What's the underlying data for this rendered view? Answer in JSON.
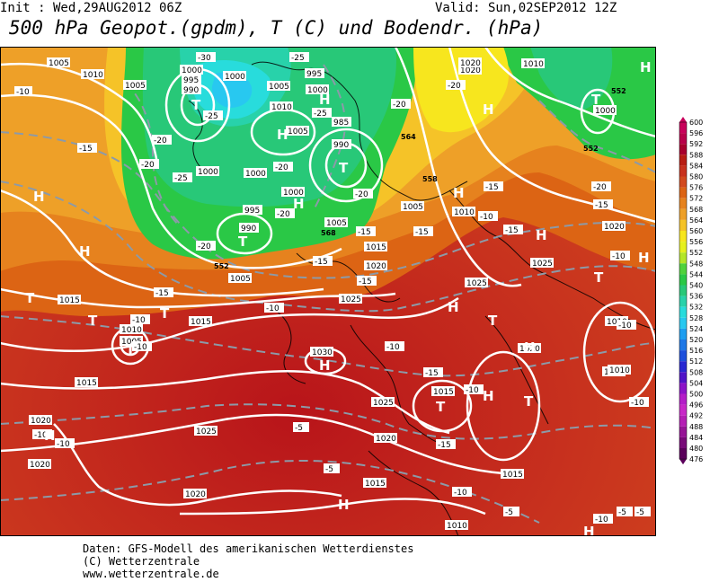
{
  "header": {
    "init_label": "Init : Wed,29AUG2012 06Z",
    "valid_label": "Valid: Sun,02SEP2012 12Z",
    "title": "500 hPa Geopot.(gpdm), T (C) und Bodendr. (hPa)"
  },
  "legend": {
    "levels": [
      "600",
      "596",
      "592",
      "588",
      "584",
      "580",
      "576",
      "572",
      "568",
      "564",
      "560",
      "556",
      "552",
      "548",
      "544",
      "540",
      "536",
      "532",
      "528",
      "524",
      "520",
      "516",
      "512",
      "508",
      "504",
      "500",
      "496",
      "492",
      "488",
      "484",
      "480",
      "476"
    ],
    "colors": [
      "#c8005a",
      "#b8004a",
      "#a8002e",
      "#b81e14",
      "#c8321e",
      "#d24a1e",
      "#dc6414",
      "#e6821e",
      "#eea028",
      "#f5c328",
      "#f7e61e",
      "#e6f01e",
      "#b4e628",
      "#50d23c",
      "#2ac846",
      "#28c878",
      "#28d2aa",
      "#28dcdc",
      "#28c8f0",
      "#1e9ef0",
      "#1e78e6",
      "#1e50dc",
      "#2828d2",
      "#5014c8",
      "#8c14c8",
      "#b41ec8",
      "#c828c8",
      "#b41eb4",
      "#961496",
      "#780a78",
      "#5a005a"
    ]
  },
  "map": {
    "pressure_labels": [
      "1005",
      "1010",
      "1005",
      "1000",
      "995",
      "990",
      "1000",
      "1005",
      "995",
      "1000",
      "1010",
      "1005",
      "985",
      "990",
      "1020",
      "1010",
      "1000",
      "1000",
      "995",
      "990",
      "1000",
      "1000",
      "1005",
      "1005",
      "1005",
      "1010",
      "1015",
      "1020",
      "1015",
      "1025",
      "1025",
      "1015",
      "1010",
      "1005",
      "1015",
      "1030",
      "1025",
      "1020",
      "1015",
      "1015",
      "1025",
      "1020",
      "1020",
      "1020",
      "1015",
      "1010",
      "1020",
      "1010",
      "1010",
      "1025",
      "1020",
      "1015",
      "1020"
    ],
    "temp_labels": [
      "-10",
      "-30",
      "-25",
      "-25",
      "-20",
      "-15",
      "-20",
      "-25",
      "-20",
      "-20",
      "-25",
      "-20",
      "-20",
      "-20",
      "-15",
      "-15",
      "-10",
      "-15",
      "-10",
      "-10",
      "-15",
      "-10",
      "-10",
      "-5",
      "-10",
      "-15",
      "-10",
      "-10",
      "-5",
      "-15",
      "-10",
      "-5",
      "-5",
      "-20",
      "-15",
      "-10",
      "-10",
      "-15",
      "-20",
      "-15",
      "-10",
      "-10",
      "-5",
      "-15"
    ],
    "geopot_labels": [
      "552",
      "552",
      "564",
      "568",
      "552",
      "558"
    ],
    "high_marks": [
      "H",
      "H",
      "H",
      "H",
      "H",
      "H",
      "H",
      "H",
      "H",
      "H",
      "H",
      "H",
      "H",
      "H",
      "H",
      "H",
      "H"
    ],
    "low_marks": [
      "T",
      "T",
      "T",
      "T",
      "T",
      "T",
      "T",
      "T",
      "T",
      "T",
      "T",
      "T"
    ]
  },
  "footer": {
    "line1": "Daten: GFS-Modell des amerikanischen Wetterdienstes",
    "line2": "(C) Wetterzentrale",
    "line3": "www.wetterzentrale.de"
  }
}
